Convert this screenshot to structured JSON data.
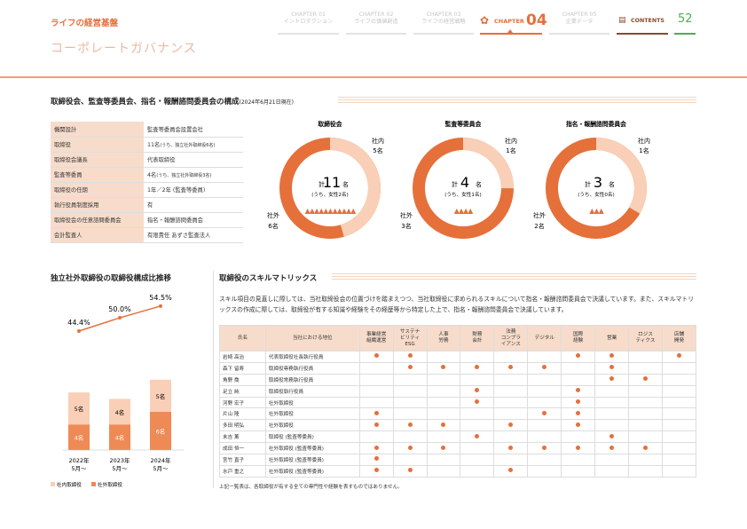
{
  "header": {
    "brand": "ライフの経営基盤",
    "title": "コーポレートガバナンス",
    "nav": [
      {
        "chapter": "CHAPTER 01",
        "label": "イントロダクション"
      },
      {
        "chapter": "CHAPTER 02",
        "label": "ライフの価値創造"
      },
      {
        "chapter": "CHAPTER 03",
        "label": "ライフの経営戦略"
      }
    ],
    "active": {
      "chapter": "CHAPTER",
      "num": "04"
    },
    "nav_after": {
      "chapter": "CHAPTER 05",
      "label": "企業データ"
    },
    "contents": "CONTENTS",
    "page": "52"
  },
  "board": {
    "title": "取締役会、監査等委員会、指名・報酬諮問委員会の構成",
    "date": "(2024年6月21日現在)",
    "rows": [
      {
        "k": "機関設計",
        "v": "監査等委員会設置会社"
      },
      {
        "k": "取締役",
        "v": "11名",
        "vs": "(うち、独立社外取締役6名)"
      },
      {
        "k": "取締役会議長",
        "v": "代表取締役"
      },
      {
        "k": "監査等委員",
        "v": "4名",
        "vs": "(うち、独立社外取締役3名)"
      },
      {
        "k": "取締役の任期",
        "v": "1年／2年 (監査等委員)"
      },
      {
        "k": "執行役員制度採用",
        "v": "有"
      },
      {
        "k": "取締役会の任意諮問委員会",
        "v": "指名・報酬諮問委員会"
      },
      {
        "k": "会計監査人",
        "v": "有限責任 あずさ監査法人"
      }
    ]
  },
  "donuts": [
    {
      "title": "取締役会",
      "pre": "計",
      "total": "11",
      "unit": "名",
      "women": "(うち、女性2名)",
      "inside_label": "社内",
      "inside_n": "5名",
      "outside_label": "社外",
      "outside_n": "6名",
      "inside": 5,
      "outside": 6,
      "people": "▲▲▲▲▲▲▲▲▲▲▲"
    },
    {
      "title": "監査等委員会",
      "pre": "計",
      "total": "4",
      "unit": "名",
      "women": "(うち、女性1名)",
      "inside_label": "社内",
      "inside_n": "1名",
      "outside_label": "社外",
      "outside_n": "3名",
      "inside": 1,
      "outside": 3,
      "people": "▲▲▲▲"
    },
    {
      "title": "指名・報酬諮問委員会",
      "pre": "計",
      "total": "3",
      "unit": "名",
      "women": "(うち、女性0名)",
      "inside_label": "社内",
      "inside_n": "1名",
      "outside_label": "社外",
      "outside_n": "2名",
      "inside": 1,
      "outside": 2,
      "people": "▲▲▲"
    }
  ],
  "colors": {
    "accent": "#e5703a",
    "light": "#f9cfb7",
    "header_bg": "#f7dccb",
    "green": "#4caf50"
  },
  "chart_data": {
    "type": "bar",
    "title": "独立社外取締役の取締役構成比推移",
    "categories": [
      "2022年\n5月～",
      "2023年\n5月～",
      "2024年\n5月～"
    ],
    "category_lines": [
      [
        "2022年",
        "5月～"
      ],
      [
        "2023年",
        "5月～"
      ],
      [
        "2024年",
        "5月～"
      ]
    ],
    "series": [
      {
        "name": "社外取締役",
        "values": [
          4,
          4,
          6
        ],
        "labels": [
          "4名",
          "4名",
          "6名"
        ],
        "color": "#ee8a55"
      },
      {
        "name": "社内取締役",
        "values": [
          5,
          4,
          5
        ],
        "labels": [
          "5名",
          "4名",
          "5名"
        ],
        "color": "#f9cfb7"
      }
    ],
    "ratio": {
      "values": [
        44.4,
        50.0,
        54.5
      ],
      "labels": [
        "44.4%",
        "50.0%",
        "54.5%"
      ]
    },
    "legend": [
      "社内取締役",
      "社外取締役"
    ]
  },
  "skills": {
    "title": "取締役のスキルマトリックス",
    "desc": "スキル項目の見直しに際しては、当社取締役会の位置づけを踏まえつつ、当社取締役に求められるスキルについて指名・報酬諮問委員会で決議しています。また、スキルマトリックスの作成に際しては、取締役が有する知識や経験をその経歴等から特定した上で、指名・報酬諮問委員会で決議しています。",
    "head_name": "氏名",
    "head_pos": "当社における地位",
    "cols": [
      [
        "事業経営",
        "組織運営"
      ],
      [
        "サステナ",
        "ビリティ",
        "ESG"
      ],
      [
        "人事",
        "労務"
      ],
      [
        "財務",
        "会計"
      ],
      [
        "法務",
        "コンプラ",
        "イアンス"
      ],
      [
        "デジタル"
      ],
      [
        "国際",
        "経験"
      ],
      [
        "営業"
      ],
      [
        "ロジス",
        "ティクス"
      ],
      [
        "店舗",
        "開発"
      ]
    ],
    "rows": [
      {
        "name": "岩崎 高治",
        "pos": "代表取締役社長執行役員",
        "s": [
          1,
          1,
          0,
          0,
          0,
          0,
          1,
          1,
          0,
          1
        ]
      },
      {
        "name": "森下 留寿",
        "pos": "取締役専務執行役員",
        "s": [
          0,
          1,
          1,
          1,
          1,
          1,
          0,
          1,
          0,
          0
        ]
      },
      {
        "name": "角野 喬",
        "pos": "取締役常務執行役員",
        "s": [
          0,
          0,
          0,
          0,
          0,
          0,
          0,
          1,
          1,
          0
        ]
      },
      {
        "name": "足立 純",
        "pos": "取締役執行役員",
        "s": [
          0,
          0,
          0,
          1,
          0,
          0,
          1,
          0,
          0,
          0
        ]
      },
      {
        "name": "河野 宏子",
        "pos": "社外取締役",
        "s": [
          0,
          0,
          0,
          1,
          0,
          0,
          1,
          0,
          0,
          0
        ]
      },
      {
        "name": "片山 隆",
        "pos": "社外取締役",
        "s": [
          1,
          0,
          0,
          0,
          0,
          1,
          1,
          0,
          0,
          0
        ]
      },
      {
        "name": "多田 明弘",
        "pos": "社外取締役",
        "s": [
          1,
          1,
          1,
          0,
          1,
          0,
          1,
          0,
          0,
          0
        ]
      },
      {
        "name": "末吉 薫",
        "pos": "取締役 (監査等委員)",
        "s": [
          0,
          0,
          0,
          1,
          0,
          0,
          0,
          1,
          0,
          0
        ]
      },
      {
        "name": "成田 恒一",
        "pos": "社外取締役 (監査等委員)",
        "s": [
          1,
          1,
          1,
          0,
          1,
          1,
          1,
          1,
          1,
          0
        ]
      },
      {
        "name": "宮竹 直子",
        "pos": "社外取締役 (監査等委員)",
        "s": [
          1,
          0,
          0,
          0,
          0,
          0,
          0,
          0,
          0,
          0
        ]
      },
      {
        "name": "水戸 重之",
        "pos": "社外取締役 (監査等委員)",
        "s": [
          1,
          1,
          0,
          0,
          1,
          0,
          0,
          0,
          0,
          0
        ]
      }
    ],
    "note": "上記一覧表は、各取締役が有する全ての専門性や経験を表すものではありません。"
  }
}
